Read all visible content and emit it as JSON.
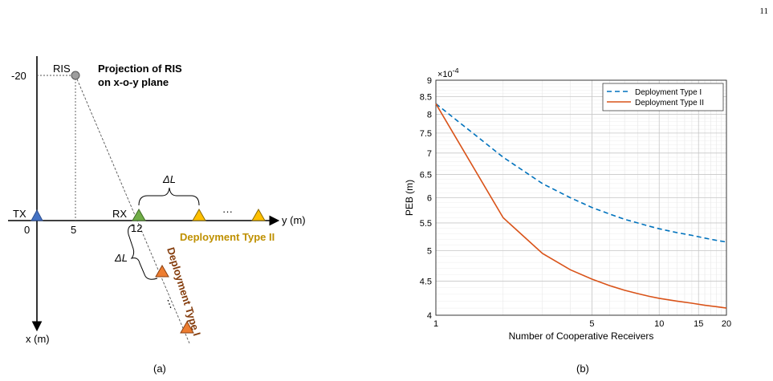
{
  "page_number": "11",
  "figure_a": {
    "caption": "(a)",
    "ris_label": "RIS",
    "ris_y_label": "-20",
    "projection_line1": "Projection of RIS",
    "projection_line2": "on x-o-y plane",
    "tx_label": "TX",
    "rx_label": "RX",
    "tick_0": "0",
    "tick_5": "5",
    "tick_12": "12",
    "y_axis_label": "y (m)",
    "x_axis_label": "x (m)",
    "delta_l_top": "ΔL",
    "delta_l_left": "ΔL",
    "ellipsis_h": "···",
    "ellipsis_d": "⋮",
    "type2_label": "Deployment Type II",
    "type1_label": "Deployment Type I",
    "colors": {
      "tx": "#4472c4",
      "rx": "#70ad47",
      "type2": "#ffc000",
      "type1": "#ed7d31",
      "ris": "#9e9e9e",
      "type2_text": "#bf9000",
      "type1_text": "#843c0c"
    }
  },
  "figure_b": {
    "caption": "(b)",
    "ylabel": "PEB (m)",
    "xlabel": "Number of Cooperative Receivers",
    "exponent_label": "×10",
    "exponent_power": "-4",
    "chart_data": {
      "type": "line",
      "x_scale": "log",
      "y_scale": "log",
      "xlim": [
        1,
        20
      ],
      "ylim": [
        4.0,
        9.0
      ],
      "y_multiplier": "1e-4",
      "x_ticks": [
        1,
        5,
        10,
        15,
        20
      ],
      "x_tick_labels": [
        "1",
        "5",
        "10",
        "15",
        "20"
      ],
      "y_ticks": [
        4,
        4.5,
        5,
        5.5,
        6,
        6.5,
        7,
        7.5,
        8,
        8.5,
        9
      ],
      "y_tick_labels": [
        "4",
        "4.5",
        "5",
        "5.5",
        "6",
        "6.5",
        "7",
        "7.5",
        "8",
        "8.5",
        "9"
      ],
      "grid": true,
      "legend_position": "top-right",
      "series": [
        {
          "name": "Deployment Type I",
          "color": "#0072bd",
          "dash": true,
          "x": [
            1,
            2,
            3,
            4,
            5,
            6,
            7,
            8,
            9,
            10,
            12,
            14,
            16,
            18,
            20
          ],
          "y": [
            8.3,
            6.9,
            6.3,
            6.0,
            5.8,
            5.67,
            5.57,
            5.5,
            5.44,
            5.39,
            5.32,
            5.27,
            5.22,
            5.18,
            5.15
          ]
        },
        {
          "name": "Deployment Type II",
          "color": "#d95319",
          "dash": false,
          "x": [
            1,
            2,
            3,
            4,
            5,
            6,
            7,
            8,
            9,
            10,
            12,
            14,
            16,
            18,
            20
          ],
          "y": [
            8.3,
            5.6,
            4.95,
            4.68,
            4.53,
            4.43,
            4.36,
            4.31,
            4.27,
            4.24,
            4.2,
            4.17,
            4.14,
            4.12,
            4.1
          ]
        }
      ]
    }
  }
}
